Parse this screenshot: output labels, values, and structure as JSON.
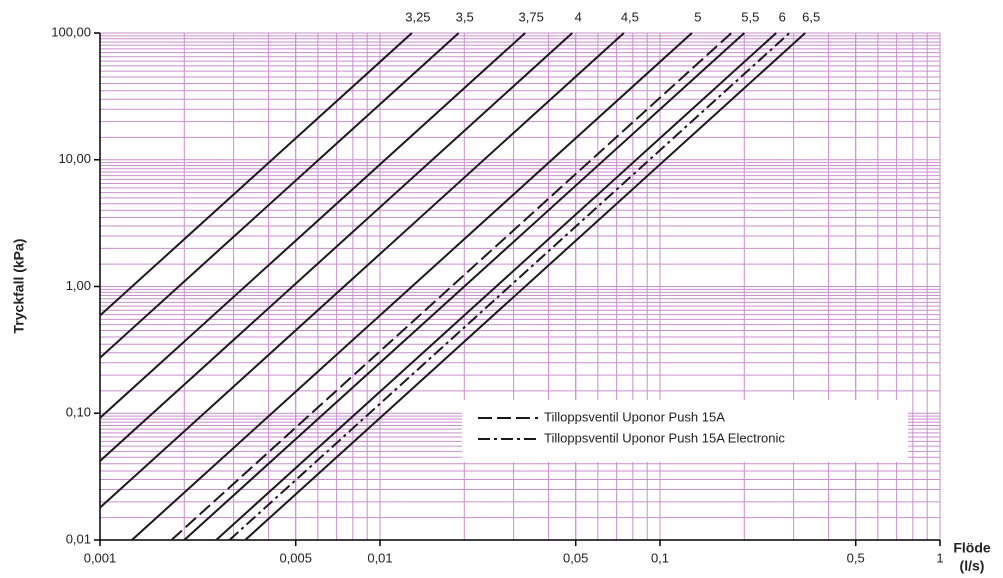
{
  "chart_data": {
    "type": "line",
    "y_label": "Tryckfall (kPa)",
    "x_label": [
      "Flöde",
      "(l/s)"
    ],
    "xscale": "log",
    "yscale": "log",
    "grid": true,
    "minor_grid": true,
    "xlim": [
      0.001,
      1
    ],
    "ylim": [
      0.01,
      100
    ],
    "xticks": [
      {
        "value": 0.001,
        "label": "0,001"
      },
      {
        "value": 0.005,
        "label": "0,005"
      },
      {
        "value": 0.01,
        "label": "0,01"
      },
      {
        "value": 0.05,
        "label": "0,05"
      },
      {
        "value": 0.1,
        "label": "0,1"
      },
      {
        "value": 0.5,
        "label": "0,5"
      },
      1
    ],
    "yticks": [
      {
        "value": 0.01,
        "label": "0,01"
      },
      {
        "value": 0.1,
        "label": "0,10"
      },
      {
        "value": 1,
        "label": "1,00"
      },
      {
        "value": 10,
        "label": "10,00"
      },
      {
        "value": 100,
        "label": "100,00"
      }
    ],
    "legend": "lower right",
    "series": [
      {
        "name": "3,25",
        "color": "#1a1a1a",
        "style": "solid",
        "x": [
          0.001,
          0.013
        ],
        "values": [
          0.59,
          100
        ]
      },
      {
        "name": "3,5",
        "color": "#1a1a1a",
        "style": "solid",
        "x": [
          0.001,
          0.0191
        ],
        "values": [
          0.274,
          100
        ]
      },
      {
        "name": "3,75",
        "color": "#1a1a1a",
        "style": "solid",
        "x": [
          0.001,
          0.033
        ],
        "values": [
          0.092,
          100
        ]
      },
      {
        "name": "4",
        "color": "#1a1a1a",
        "style": "solid",
        "x": [
          0.001,
          0.0486
        ],
        "values": [
          0.042,
          100
        ]
      },
      {
        "name": "4,5",
        "color": "#1a1a1a",
        "style": "solid",
        "x": [
          0.001,
          0.0743
        ],
        "values": [
          0.018,
          100
        ]
      },
      {
        "name": "5",
        "color": "#1a1a1a",
        "style": "solid",
        "x": [
          0.0013,
          0.13
        ],
        "values": [
          0.01,
          100
        ]
      },
      {
        "name": "Tilloppsventil Uponor Push 15A",
        "color": "#1a1a1a",
        "style": "dashed",
        "x": [
          0.0018,
          0.18
        ],
        "values": [
          0.01,
          100
        ]
      },
      {
        "name": "5,5",
        "color": "#1a1a1a",
        "style": "solid",
        "x": [
          0.002,
          0.2
        ],
        "values": [
          0.01,
          100
        ]
      },
      {
        "name": "6",
        "color": "#1a1a1a",
        "style": "solid",
        "x": [
          0.0026,
          0.26
        ],
        "values": [
          0.01,
          100
        ]
      },
      {
        "name": "Tilloppsventil Uponor Push 15A Electronic",
        "color": "#1a1a1a",
        "style": "dashdot",
        "x": [
          0.0029,
          0.29
        ],
        "values": [
          0.01,
          100
        ]
      },
      {
        "name": "6,5",
        "color": "#1a1a1a",
        "style": "solid",
        "x": [
          0.0033,
          0.33
        ],
        "values": [
          0.01,
          100
        ]
      }
    ]
  }
}
